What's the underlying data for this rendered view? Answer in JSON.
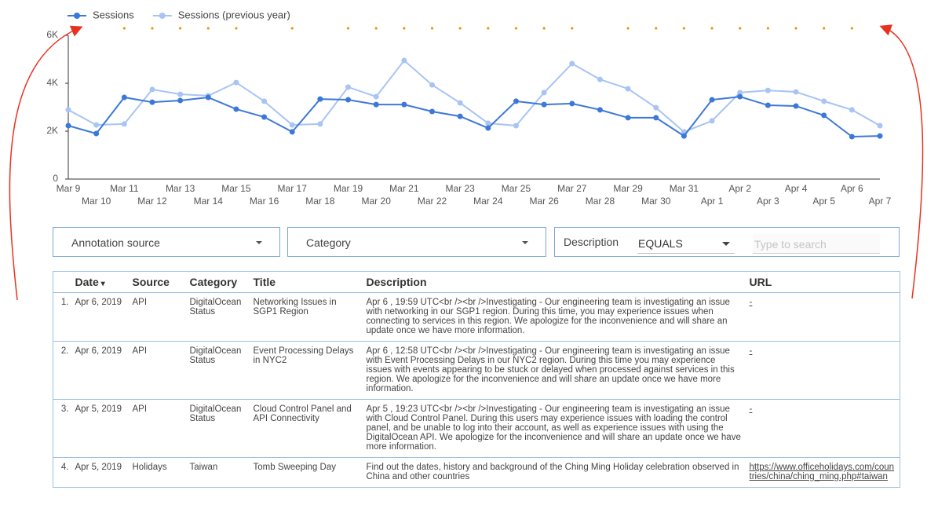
{
  "chart_data": {
    "type": "line",
    "categories": [
      "Mar 9",
      "Mar 10",
      "Mar 11",
      "Mar 12",
      "Mar 13",
      "Mar 14",
      "Mar 15",
      "Mar 16",
      "Mar 17",
      "Mar 18",
      "Mar 19",
      "Mar 20",
      "Mar 21",
      "Mar 22",
      "Mar 23",
      "Mar 24",
      "Mar 25",
      "Mar 26",
      "Mar 27",
      "Mar 28",
      "Mar 29",
      "Mar 30",
      "Mar 31",
      "Apr 1",
      "Apr 2",
      "Apr 3",
      "Apr 4",
      "Apr 5",
      "Apr 6",
      "Apr 7"
    ],
    "series": [
      {
        "name": "Sessions",
        "color": "#3c78d8",
        "values": [
          2230,
          1900,
          3410,
          3210,
          3280,
          3410,
          2920,
          2590,
          1970,
          3340,
          3310,
          3110,
          3110,
          2820,
          2620,
          2130,
          3250,
          3110,
          3150,
          2890,
          2560,
          2560,
          1800,
          3310,
          3440,
          3080,
          3050,
          2660,
          1770,
          1800
        ]
      },
      {
        "name": "Sessions (previous year)",
        "color": "#a8c4f5",
        "values": [
          2890,
          2260,
          2300,
          3740,
          3540,
          3480,
          4030,
          3250,
          2260,
          2300,
          3840,
          3440,
          4950,
          3930,
          3180,
          2330,
          2230,
          3610,
          4820,
          4160,
          3770,
          2980,
          1970,
          2430,
          3610,
          3700,
          3640,
          3250,
          2890,
          2230
        ]
      }
    ],
    "annotations": [
      "Mar 11",
      "Mar 12",
      "Mar 13",
      "Mar 14",
      "Mar 15",
      "Mar 17",
      "Mar 19",
      "Mar 20",
      "Mar 21",
      "Mar 22",
      "Mar 23",
      "Mar 24",
      "Mar 25",
      "Mar 26",
      "Mar 27",
      "Mar 29",
      "Mar 30",
      "Mar 31",
      "Apr 1",
      "Apr 2",
      "Apr 3",
      "Apr 4",
      "Apr 5",
      "Apr 6"
    ],
    "annotation_color": "#f0960a",
    "ylim": [
      0,
      6000
    ],
    "yticks": [
      0,
      {
        "value": 2000,
        "label": "2K"
      },
      {
        "value": 4000,
        "label": "4K"
      },
      {
        "value": 6000,
        "label": "6K"
      }
    ],
    "grid": false,
    "legend": "top-left"
  },
  "filters": {
    "source": "Annotation source",
    "category": "Category",
    "description": "Description",
    "operator": "EQUALS",
    "search_placeholder": "Type to search"
  },
  "table": {
    "columns": [
      "Date",
      "Source",
      "Category",
      "Title",
      "Description",
      "URL"
    ],
    "rows": [
      {
        "num": "1.",
        "cells": [
          "Apr 6, 2019",
          "API",
          "DigitalOcean Status",
          "Networking Issues in SGP1 Region",
          "Apr 6 , 19:59 UTC<br /><br />Investigating - Our engineering team is investigating an issue with networking in our SGP1 region. During this time, you may experience issues when connecting to services in this region. We apologize for the inconvenience and will share an update once we have more information.",
          "-"
        ]
      },
      {
        "num": "2.",
        "cells": [
          "Apr 6, 2019",
          "API",
          "DigitalOcean Status",
          "Event Processing Delays in NYC2",
          "Apr 6 , 12:58 UTC<br /><br />Investigating - Our engineering team is investigating an issue with Event Processing Delays in our NYC2 region. During this time you may experience issues with events appearing to be stuck or delayed when processed against services in this region. We apologize for the inconvenience and will share an update once we have more information.",
          "-"
        ]
      },
      {
        "num": "3.",
        "cells": [
          "Apr 5, 2019",
          "API",
          "DigitalOcean Status",
          "Cloud Control Panel and API Connectivity",
          "Apr 5 , 19:23 UTC<br /><br />Investigating - Our engineering team is investigating an issue with Cloud Control Panel. During this users may experience issues with loading the control panel, and be unable to log into their account, as well as experience issues with using the DigitalOcean API. We apologize for the inconvenience and will share an update once we have more information.",
          "-"
        ]
      },
      {
        "num": "4.",
        "cells": [
          "Apr 5, 2019",
          "Holidays",
          "Taiwan",
          "Tomb Sweeping Day",
          "Find out the dates, history and background of the Ching Ming Holiday celebration observed in China and other countries",
          "https://www.officeholidays.com/countries/china/ching_ming.php#taiwan"
        ]
      }
    ]
  }
}
